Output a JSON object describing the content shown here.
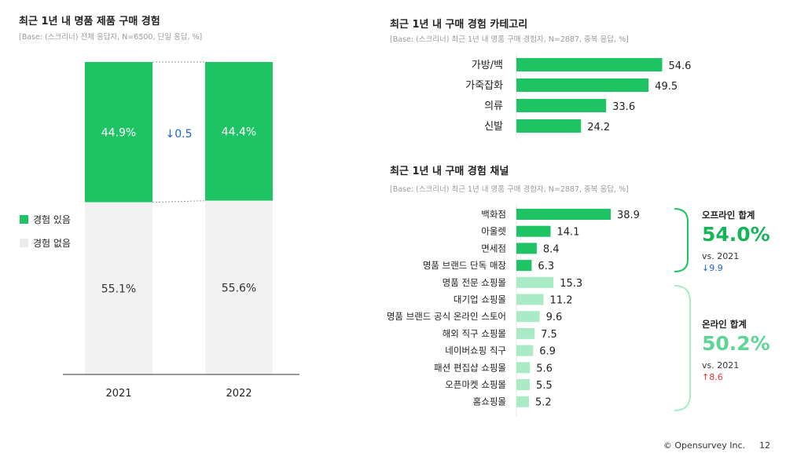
{
  "charts": {
    "left": {
      "title": "최근 1년 내 명품 제품 구매 경험",
      "subtitle": "[Base: (스크리너) 전체 응답자, N=6500, 단일 응답, %]"
    },
    "category": {
      "title": "최근 1년 내 구매 경험 카테고리",
      "subtitle": "[Base: (스크리너) 최근 1년 내 명품 구매 경험자, N=2887, 중복 응답, %]"
    },
    "channel": {
      "title": "최근 1년 내 구매 경험 채널",
      "subtitle": "[Base: (스크리너) 최근 1년 내 명품 구매 경험자, N=2887, 중복 응답, %]"
    }
  },
  "colors": {
    "green": "#1ec463",
    "light_green": "#a8ebc4",
    "gray": "#f2f2f2",
    "blue": "#1a62d6",
    "red": "#e0322f",
    "offline_accent": "#16b55a",
    "online_accent": "#5fd494"
  },
  "summary": {
    "offline": {
      "label": "오프라인 합계",
      "value": "54.0%",
      "vs": "vs. 2021",
      "delta": "↓9.9"
    },
    "online": {
      "label": "온라인 합계",
      "value": "50.2%",
      "vs": "vs. 2021",
      "delta": "↑8.6"
    }
  },
  "footer": {
    "copyright": "© Opensurvey Inc.",
    "page": "12"
  },
  "chart_data": [
    {
      "type": "bar",
      "subtype": "stacked-100",
      "title": "최근 1년 내 명품 제품 구매 경험",
      "categories": [
        "2021",
        "2022"
      ],
      "series": [
        {
          "name": "경험 있음",
          "values": [
            44.9,
            44.4
          ],
          "labels": [
            "44.9%",
            "44.4%"
          ]
        },
        {
          "name": "경험 없음",
          "values": [
            55.1,
            55.6
          ],
          "labels": [
            "55.1%",
            "55.6%"
          ]
        }
      ],
      "change_annotation": "↓0.5",
      "ylim": [
        0,
        100
      ]
    },
    {
      "type": "bar",
      "orientation": "horizontal",
      "title": "최근 1년 내 구매 경험 카테고리",
      "categories": [
        "가방/백",
        "가죽잡화",
        "의류",
        "신발"
      ],
      "values": [
        54.6,
        49.5,
        33.6,
        24.2
      ],
      "value_labels": [
        "54.6",
        "49.5",
        "33.6",
        "24.2"
      ],
      "xlim": [
        0,
        100
      ]
    },
    {
      "type": "bar",
      "orientation": "horizontal",
      "title": "최근 1년 내 구매 경험 채널",
      "categories": [
        "백화점",
        "아울렛",
        "면세점",
        "명품 브랜드 단독 매장",
        "명품 전문 쇼핑몰",
        "대기업 쇼핑몰",
        "명품 브랜드 공식 온라인 스토어",
        "해외 직구 쇼핑몰",
        "네이버쇼핑 직구",
        "패션 편집샵 쇼핑몰",
        "오픈마켓 쇼핑몰",
        "홈쇼핑몰"
      ],
      "values": [
        38.9,
        14.1,
        8.4,
        6.3,
        15.3,
        11.2,
        9.6,
        7.5,
        6.9,
        5.6,
        5.5,
        5.2
      ],
      "value_labels": [
        "38.9",
        "14.1",
        "8.4",
        "6.3",
        "15.3",
        "11.2",
        "9.6",
        "7.5",
        "6.9",
        "5.6",
        "5.5",
        "5.2"
      ],
      "groups": [
        "offline",
        "offline",
        "offline",
        "offline",
        "online",
        "online",
        "online",
        "online",
        "online",
        "online",
        "online",
        "online"
      ],
      "xlim": [
        0,
        100
      ]
    }
  ]
}
